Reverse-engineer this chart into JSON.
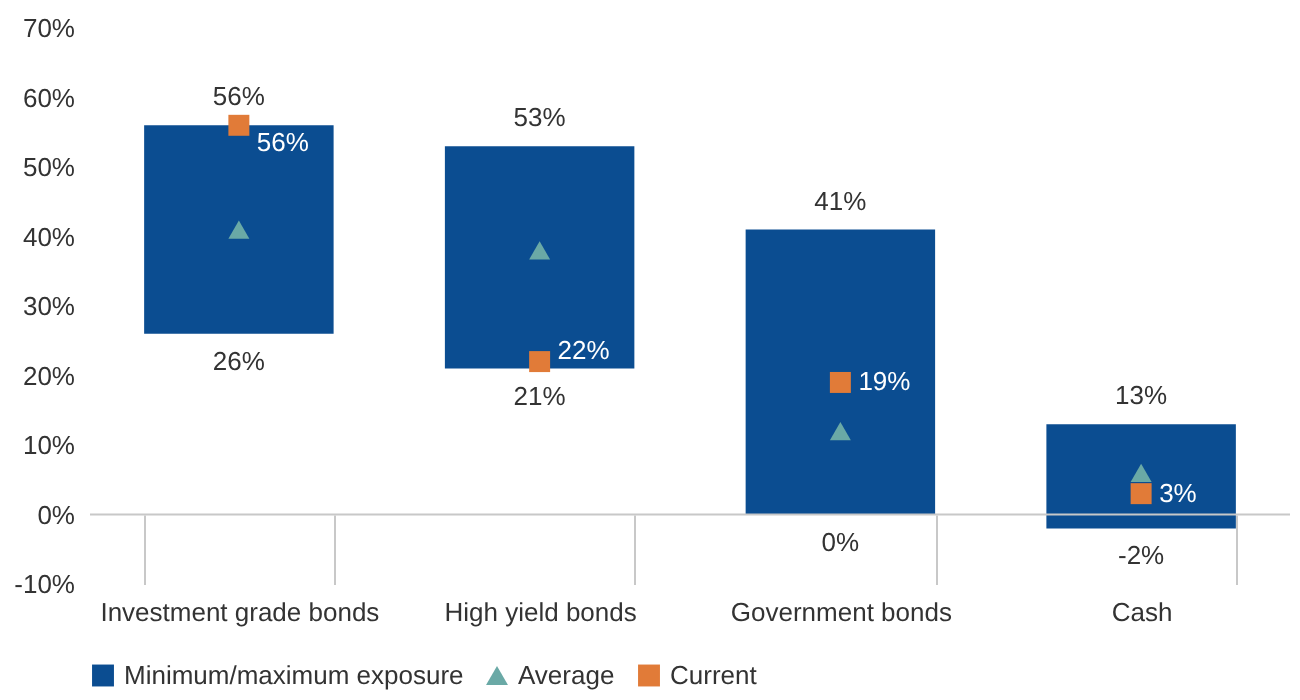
{
  "chart_data": {
    "type": "bar",
    "categories": [
      "Investment grade bonds",
      "High yield bonds",
      "Government bonds",
      "Cash"
    ],
    "series": [
      {
        "name": "Minimum/maximum exposure",
        "color": "#0b4d91",
        "base": [
          26,
          21,
          0,
          -2
        ],
        "values": [
          30,
          32,
          41,
          15
        ],
        "value_labels": [
          "56%",
          "53%",
          "41%",
          "13%"
        ]
      },
      {
        "name": "Average",
        "type": "scatter",
        "marker": "triangle",
        "color": "#6aa9a6",
        "values": [
          41,
          38,
          12,
          6
        ]
      },
      {
        "name": "Current",
        "type": "scatter",
        "marker": "square",
        "color": "#e17b38",
        "values": [
          56,
          22,
          19,
          3
        ],
        "value_labels": [
          "56%",
          "22%",
          "19%",
          "3%"
        ]
      }
    ],
    "annotations": [
      "26%",
      "21%",
      "0%",
      "-2%"
    ],
    "ylim": [
      -10,
      70
    ],
    "yticks": [
      {
        "value": -10,
        "label": "-10%"
      },
      {
        "value": 0,
        "label": "0%"
      },
      {
        "value": 10,
        "label": "10%"
      },
      {
        "value": 20,
        "label": "20%"
      },
      {
        "value": 30,
        "label": "30%"
      },
      {
        "value": 40,
        "label": "40%"
      },
      {
        "value": 50,
        "label": "50%"
      },
      {
        "value": 60,
        "label": "60%"
      },
      {
        "value": 70,
        "label": "70%"
      }
    ],
    "ref_lines": [
      {
        "axis": "y",
        "value": 0,
        "color": "#c8c8c8"
      }
    ],
    "legend": "bottom"
  }
}
